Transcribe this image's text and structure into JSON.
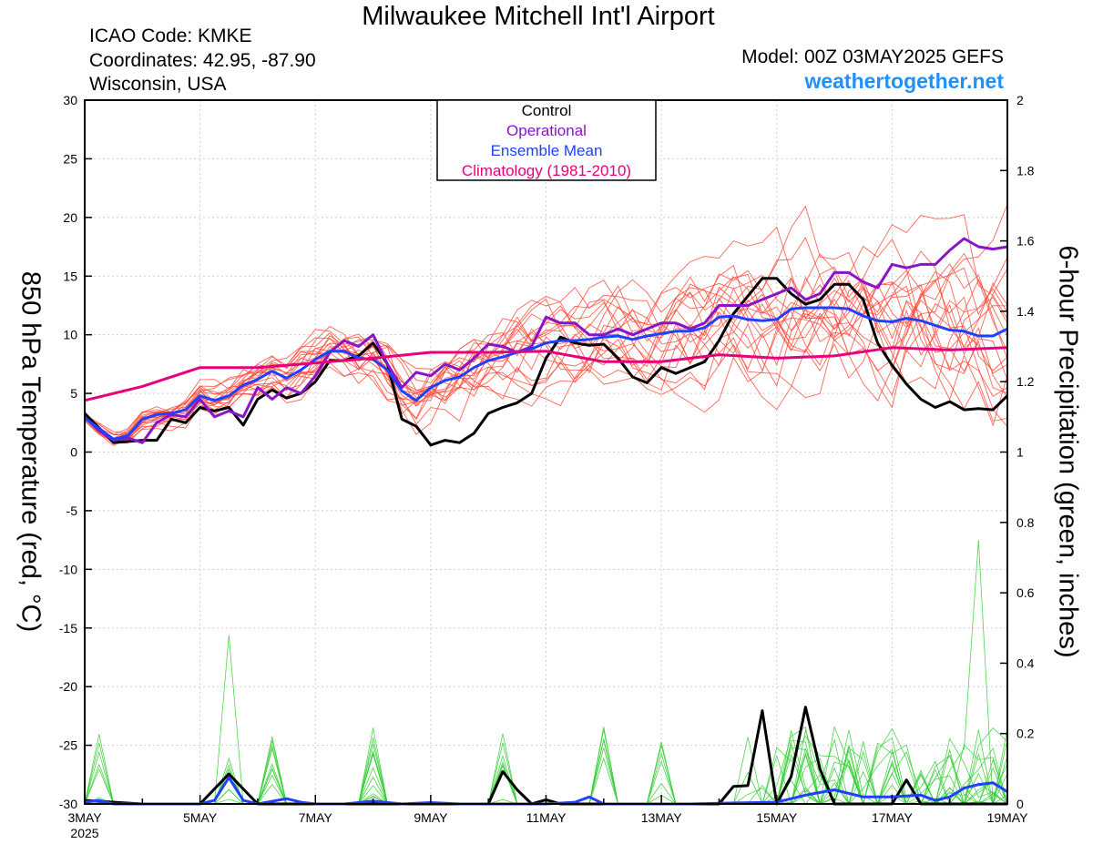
{
  "header": {
    "title": "Milwaukee Mitchell Int'l Airport",
    "icao": "ICAO Code: KMKE",
    "coordinates": "Coordinates: 42.95, -87.90",
    "location": "Wisconsin, USA",
    "model": "Model: 00Z 03MAY2025 GEFS",
    "site": "weathertogether.net"
  },
  "chart_data": {
    "type": "line",
    "title": "Milwaukee Mitchell Int'l Airport",
    "ylabel_left": "850 hPa Temperature (red, °C)",
    "ylabel_right": "6-hour Precipitation (green, inches)",
    "ylim_left": [
      -30,
      30
    ],
    "ylim_right": [
      0,
      2
    ],
    "yticks_left": [
      "30",
      "25",
      "20",
      "15",
      "10",
      "5",
      "0",
      "-5",
      "-10",
      "-15",
      "-20",
      "-25",
      "-30"
    ],
    "yticks_right": [
      "2",
      "1.8",
      "1.6",
      "1.4",
      "1.2",
      "1",
      "0.8",
      "0.6",
      "0.4",
      "0.2",
      "0"
    ],
    "xlim_days": [
      3,
      19
    ],
    "xticks": [
      {
        "day": 3,
        "label": "3MAY",
        "sub": "2025"
      },
      {
        "day": 5,
        "label": "5MAY",
        "sub": ""
      },
      {
        "day": 7,
        "label": "7MAY",
        "sub": ""
      },
      {
        "day": 9,
        "label": "9MAY",
        "sub": ""
      },
      {
        "day": 11,
        "label": "11MAY",
        "sub": ""
      },
      {
        "day": 13,
        "label": "13MAY",
        "sub": ""
      },
      {
        "day": 15,
        "label": "15MAY",
        "sub": ""
      },
      {
        "day": 17,
        "label": "17MAY",
        "sub": ""
      },
      {
        "day": 19,
        "label": "19MAY",
        "sub": ""
      }
    ],
    "grid": true,
    "legend": {
      "position": "top-center",
      "entries": [
        {
          "label": "Control",
          "color": "#000000"
        },
        {
          "label": "Operational",
          "color": "#8a14c8"
        },
        {
          "label": "Ensemble Mean",
          "color": "#2040ff"
        },
        {
          "label": "Climatology (1981-2010)",
          "color": "#e6007e"
        }
      ]
    },
    "colors": {
      "control": "#000000",
      "operational": "#8a14c8",
      "mean": "#2040ff",
      "climatology": "#e6007e",
      "members_temp": "#ff4a3a",
      "members_precip": "#2ecc2e"
    },
    "series": [
      {
        "name": "Control",
        "points": [
          [
            3.0,
            3.3
          ],
          [
            3.5,
            0.8
          ],
          [
            4.0,
            1.0
          ],
          [
            4.25,
            1.0
          ],
          [
            4.5,
            2.8
          ],
          [
            4.75,
            2.5
          ],
          [
            5.0,
            3.8
          ],
          [
            5.25,
            3.5
          ],
          [
            5.5,
            3.8
          ],
          [
            5.75,
            2.3
          ],
          [
            6.0,
            4.5
          ],
          [
            6.25,
            5.3
          ],
          [
            6.5,
            4.6
          ],
          [
            6.75,
            5.0
          ],
          [
            7.0,
            6.0
          ],
          [
            7.25,
            7.8
          ],
          [
            7.5,
            7.8
          ],
          [
            7.75,
            8.2
          ],
          [
            8.0,
            9.3
          ],
          [
            8.25,
            7.5
          ],
          [
            8.5,
            2.8
          ],
          [
            8.75,
            2.2
          ],
          [
            9.0,
            0.6
          ],
          [
            9.25,
            1.0
          ],
          [
            9.5,
            0.8
          ],
          [
            9.75,
            1.6
          ],
          [
            10.0,
            3.3
          ],
          [
            10.25,
            3.8
          ],
          [
            10.5,
            4.2
          ],
          [
            10.75,
            5.0
          ],
          [
            11.0,
            8.0
          ],
          [
            11.25,
            9.8
          ],
          [
            11.5,
            9.3
          ],
          [
            11.75,
            9.1
          ],
          [
            12.0,
            9.2
          ],
          [
            12.25,
            8.0
          ],
          [
            12.5,
            6.4
          ],
          [
            12.75,
            5.9
          ],
          [
            13.0,
            7.2
          ],
          [
            13.25,
            6.7
          ],
          [
            13.5,
            7.2
          ],
          [
            13.75,
            7.7
          ],
          [
            14.0,
            9.5
          ],
          [
            14.25,
            11.8
          ],
          [
            14.5,
            13.3
          ],
          [
            14.75,
            14.8
          ],
          [
            15.0,
            14.8
          ],
          [
            15.25,
            13.5
          ],
          [
            15.5,
            12.6
          ],
          [
            15.75,
            13.0
          ],
          [
            16.0,
            14.3
          ],
          [
            16.25,
            14.3
          ],
          [
            16.5,
            13.0
          ],
          [
            16.75,
            9.3
          ],
          [
            17.0,
            7.4
          ],
          [
            17.25,
            5.8
          ],
          [
            17.5,
            4.5
          ],
          [
            17.75,
            3.8
          ],
          [
            18.0,
            4.3
          ],
          [
            18.25,
            3.6
          ],
          [
            18.5,
            3.7
          ],
          [
            18.75,
            3.6
          ],
          [
            19.0,
            4.8
          ]
        ]
      },
      {
        "name": "Operational",
        "points": [
          [
            3.0,
            3.0
          ],
          [
            3.25,
            1.8
          ],
          [
            3.5,
            1.0
          ],
          [
            3.75,
            1.2
          ],
          [
            4.0,
            0.8
          ],
          [
            4.25,
            2.5
          ],
          [
            4.5,
            3.2
          ],
          [
            4.75,
            3.0
          ],
          [
            5.0,
            4.5
          ],
          [
            5.25,
            3.0
          ],
          [
            5.5,
            3.5
          ],
          [
            5.75,
            3.0
          ],
          [
            6.0,
            5.5
          ],
          [
            6.25,
            4.5
          ],
          [
            6.5,
            5.5
          ],
          [
            6.75,
            5.0
          ],
          [
            7.0,
            6.5
          ],
          [
            7.25,
            8.5
          ],
          [
            7.5,
            9.5
          ],
          [
            7.75,
            9.0
          ],
          [
            8.0,
            10.0
          ],
          [
            8.25,
            7.5
          ],
          [
            8.5,
            5.5
          ],
          [
            8.75,
            6.8
          ],
          [
            9.0,
            6.5
          ],
          [
            9.25,
            7.5
          ],
          [
            9.5,
            7.0
          ],
          [
            9.75,
            8.0
          ],
          [
            10.0,
            9.2
          ],
          [
            10.25,
            9.0
          ],
          [
            10.5,
            8.5
          ],
          [
            10.75,
            9.0
          ],
          [
            11.0,
            11.5
          ],
          [
            11.25,
            11.0
          ],
          [
            11.5,
            11.0
          ],
          [
            11.75,
            10.0
          ],
          [
            12.0,
            10.0
          ],
          [
            12.25,
            10.5
          ],
          [
            12.5,
            10.0
          ],
          [
            12.75,
            10.5
          ],
          [
            13.0,
            11.0
          ],
          [
            13.25,
            11.0
          ],
          [
            13.5,
            10.5
          ],
          [
            13.75,
            11.0
          ],
          [
            14.0,
            12.5
          ],
          [
            14.25,
            12.5
          ],
          [
            14.5,
            12.5
          ],
          [
            14.75,
            13.0
          ],
          [
            15.0,
            13.5
          ],
          [
            15.25,
            14.0
          ],
          [
            15.5,
            13.0
          ],
          [
            15.75,
            13.5
          ],
          [
            16.0,
            15.3
          ],
          [
            16.25,
            15.3
          ],
          [
            16.5,
            14.5
          ],
          [
            16.75,
            14.0
          ],
          [
            17.0,
            16.0
          ],
          [
            17.25,
            15.7
          ],
          [
            17.5,
            16.0
          ],
          [
            17.75,
            16.0
          ],
          [
            18.0,
            17.2
          ],
          [
            18.25,
            18.2
          ],
          [
            18.5,
            17.5
          ],
          [
            18.75,
            17.3
          ],
          [
            19.0,
            17.5
          ]
        ]
      },
      {
        "name": "Ensemble Mean",
        "points": [
          [
            3.0,
            2.9
          ],
          [
            3.25,
            2.0
          ],
          [
            3.5,
            1.1
          ],
          [
            3.75,
            1.4
          ],
          [
            4.0,
            2.8
          ],
          [
            4.25,
            3.2
          ],
          [
            4.5,
            3.3
          ],
          [
            4.75,
            3.6
          ],
          [
            5.0,
            4.8
          ],
          [
            5.25,
            4.4
          ],
          [
            5.5,
            4.8
          ],
          [
            5.75,
            5.7
          ],
          [
            6.0,
            6.2
          ],
          [
            6.25,
            6.9
          ],
          [
            6.5,
            6.3
          ],
          [
            6.75,
            7.0
          ],
          [
            7.0,
            7.9
          ],
          [
            7.25,
            8.6
          ],
          [
            7.5,
            8.6
          ],
          [
            7.75,
            8.0
          ],
          [
            8.0,
            7.9
          ],
          [
            8.25,
            7.0
          ],
          [
            8.5,
            5.2
          ],
          [
            8.75,
            4.4
          ],
          [
            9.0,
            5.5
          ],
          [
            9.25,
            6.1
          ],
          [
            9.5,
            6.4
          ],
          [
            9.75,
            7.2
          ],
          [
            10.0,
            7.8
          ],
          [
            10.25,
            8.1
          ],
          [
            10.5,
            8.5
          ],
          [
            10.75,
            8.8
          ],
          [
            11.0,
            9.3
          ],
          [
            11.25,
            9.5
          ],
          [
            11.5,
            9.5
          ],
          [
            11.75,
            9.6
          ],
          [
            12.0,
            9.8
          ],
          [
            12.25,
            9.9
          ],
          [
            12.5,
            9.6
          ],
          [
            12.75,
            9.9
          ],
          [
            13.0,
            10.1
          ],
          [
            13.25,
            10.3
          ],
          [
            13.5,
            10.3
          ],
          [
            13.75,
            10.6
          ],
          [
            14.0,
            11.5
          ],
          [
            14.25,
            11.6
          ],
          [
            14.5,
            11.3
          ],
          [
            14.75,
            11.2
          ],
          [
            15.0,
            11.3
          ],
          [
            15.25,
            12.2
          ],
          [
            15.5,
            12.3
          ],
          [
            15.75,
            12.3
          ],
          [
            16.0,
            12.3
          ],
          [
            16.25,
            12.2
          ],
          [
            16.5,
            11.6
          ],
          [
            16.75,
            11.2
          ],
          [
            17.0,
            11.1
          ],
          [
            17.25,
            11.4
          ],
          [
            17.5,
            11.2
          ],
          [
            17.75,
            10.8
          ],
          [
            18.0,
            10.4
          ],
          [
            18.25,
            10.3
          ],
          [
            18.5,
            9.9
          ],
          [
            18.75,
            9.9
          ],
          [
            19.0,
            10.5
          ]
        ]
      },
      {
        "name": "Climatology (1981-2010)",
        "points": [
          [
            3.0,
            4.4
          ],
          [
            4.0,
            5.6
          ],
          [
            5.0,
            7.2
          ],
          [
            6.0,
            7.2
          ],
          [
            7.0,
            7.6
          ],
          [
            8.0,
            8.0
          ],
          [
            9.0,
            8.5
          ],
          [
            10.0,
            8.5
          ],
          [
            11.0,
            8.6
          ],
          [
            12.0,
            7.7
          ],
          [
            13.0,
            7.7
          ],
          [
            14.0,
            8.3
          ],
          [
            15.0,
            8.0
          ],
          [
            16.0,
            8.2
          ],
          [
            17.0,
            8.9
          ],
          [
            18.0,
            8.7
          ],
          [
            19.0,
            8.9
          ]
        ]
      }
    ],
    "precip_series": [
      {
        "name": "Control",
        "points": [
          [
            3.0,
            0.01
          ],
          [
            4.0,
            0.0
          ],
          [
            5.0,
            0.0
          ],
          [
            5.5,
            0.085
          ],
          [
            6.0,
            0.0
          ],
          [
            6.5,
            0.0
          ],
          [
            7.0,
            0.0
          ],
          [
            8.0,
            0.0
          ],
          [
            9.0,
            0.0
          ],
          [
            10.0,
            0.0
          ],
          [
            10.25,
            0.092
          ],
          [
            10.5,
            0.04
          ],
          [
            10.75,
            0.0
          ],
          [
            11.0,
            0.012
          ],
          [
            11.25,
            0.0
          ],
          [
            12.0,
            0.0
          ],
          [
            13.0,
            0.0
          ],
          [
            14.0,
            0.0
          ],
          [
            14.25,
            0.05
          ],
          [
            14.5,
            0.052
          ],
          [
            14.75,
            0.265
          ],
          [
            15.0,
            0.0
          ],
          [
            15.25,
            0.078
          ],
          [
            15.5,
            0.275
          ],
          [
            15.75,
            0.1
          ],
          [
            16.0,
            0.0
          ],
          [
            16.5,
            0.0
          ],
          [
            17.0,
            0.0
          ],
          [
            17.25,
            0.068
          ],
          [
            17.5,
            0.0
          ],
          [
            18.0,
            0.0
          ],
          [
            19.0,
            0.0
          ]
        ]
      },
      {
        "name": "Ensemble Mean",
        "points": [
          [
            3.0,
            0.005
          ],
          [
            3.25,
            0.01
          ],
          [
            3.5,
            0.0
          ],
          [
            4.0,
            0.0
          ],
          [
            5.0,
            0.0
          ],
          [
            5.25,
            0.01
          ],
          [
            5.5,
            0.075
          ],
          [
            5.75,
            0.01
          ],
          [
            6.0,
            0.0
          ],
          [
            6.5,
            0.015
          ],
          [
            6.75,
            0.005
          ],
          [
            7.0,
            0.0
          ],
          [
            7.5,
            0.0
          ],
          [
            8.0,
            0.008
          ],
          [
            8.5,
            0.0
          ],
          [
            9.0,
            0.004
          ],
          [
            9.5,
            0.0
          ],
          [
            11.0,
            0.0
          ],
          [
            11.5,
            0.005
          ],
          [
            11.75,
            0.02
          ],
          [
            12.0,
            0.0
          ],
          [
            12.5,
            0.0
          ],
          [
            13.0,
            0.0
          ],
          [
            13.5,
            0.0
          ],
          [
            14.0,
            0.002
          ],
          [
            15.0,
            0.005
          ],
          [
            15.5,
            0.025
          ],
          [
            16.0,
            0.04
          ],
          [
            16.5,
            0.02
          ],
          [
            17.0,
            0.02
          ],
          [
            17.5,
            0.025
          ],
          [
            17.75,
            0.01
          ],
          [
            18.0,
            0.02
          ],
          [
            18.25,
            0.045
          ],
          [
            18.5,
            0.055
          ],
          [
            18.75,
            0.06
          ],
          [
            19.0,
            0.035
          ]
        ]
      }
    ]
  }
}
